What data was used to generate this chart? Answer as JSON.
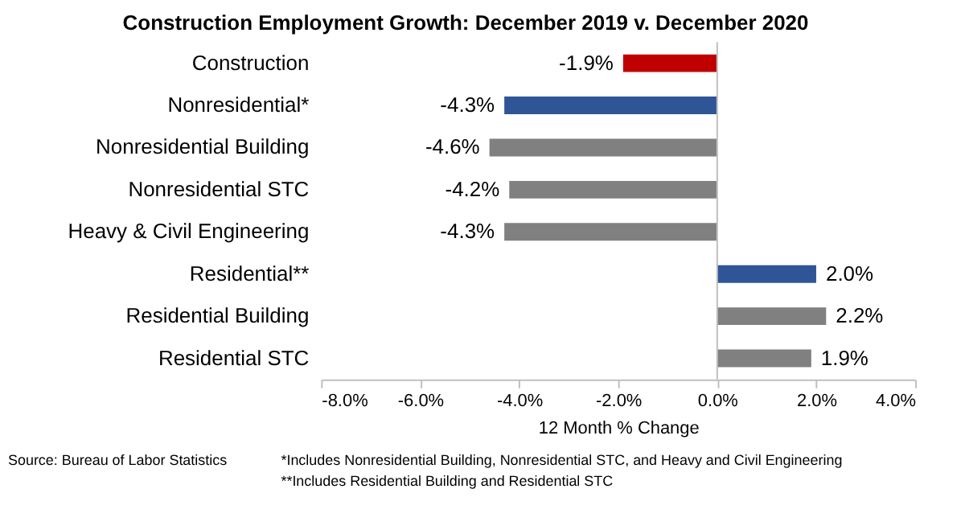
{
  "chart_data": {
    "type": "bar",
    "orientation": "horizontal",
    "title": "Construction Employment Growth: December 2019 v. December 2020",
    "categories": [
      "Construction",
      "Nonresidential*",
      "Nonresidential Building",
      "Nonresidential STC",
      "Heavy & Civil Engineering",
      "Residential**",
      "Residential Building",
      "Residential STC"
    ],
    "values": [
      -1.9,
      -4.3,
      -4.6,
      -4.2,
      -4.3,
      2.0,
      2.2,
      1.9
    ],
    "value_labels": [
      "-1.9%",
      "-4.3%",
      "-4.6%",
      "-4.2%",
      "-4.3%",
      "2.0%",
      "2.2%",
      "1.9%"
    ],
    "colors": [
      "#c00000",
      "#2f5597",
      "#808080",
      "#808080",
      "#808080",
      "#2f5597",
      "#808080",
      "#808080"
    ],
    "xlabel": "12 Month % Change",
    "xlim": [
      -8,
      4
    ],
    "xticks": [
      {
        "value": -8,
        "label": "-8.0%"
      },
      {
        "value": -6,
        "label": "-6.0%"
      },
      {
        "value": -4,
        "label": "-4.0%"
      },
      {
        "value": -2,
        "label": "-2.0%"
      },
      {
        "value": 0,
        "label": "0.0%"
      },
      {
        "value": 2,
        "label": "2.0%"
      },
      {
        "value": 4,
        "label": "4.0%"
      }
    ],
    "legend": false,
    "annotations": [
      "Source:  Bureau of Labor Statistics",
      "*Includes Nonresidential Building, Nonresidential STC, and Heavy and Civil Engineering",
      "**Includes Residential Building and Residential STC"
    ]
  }
}
